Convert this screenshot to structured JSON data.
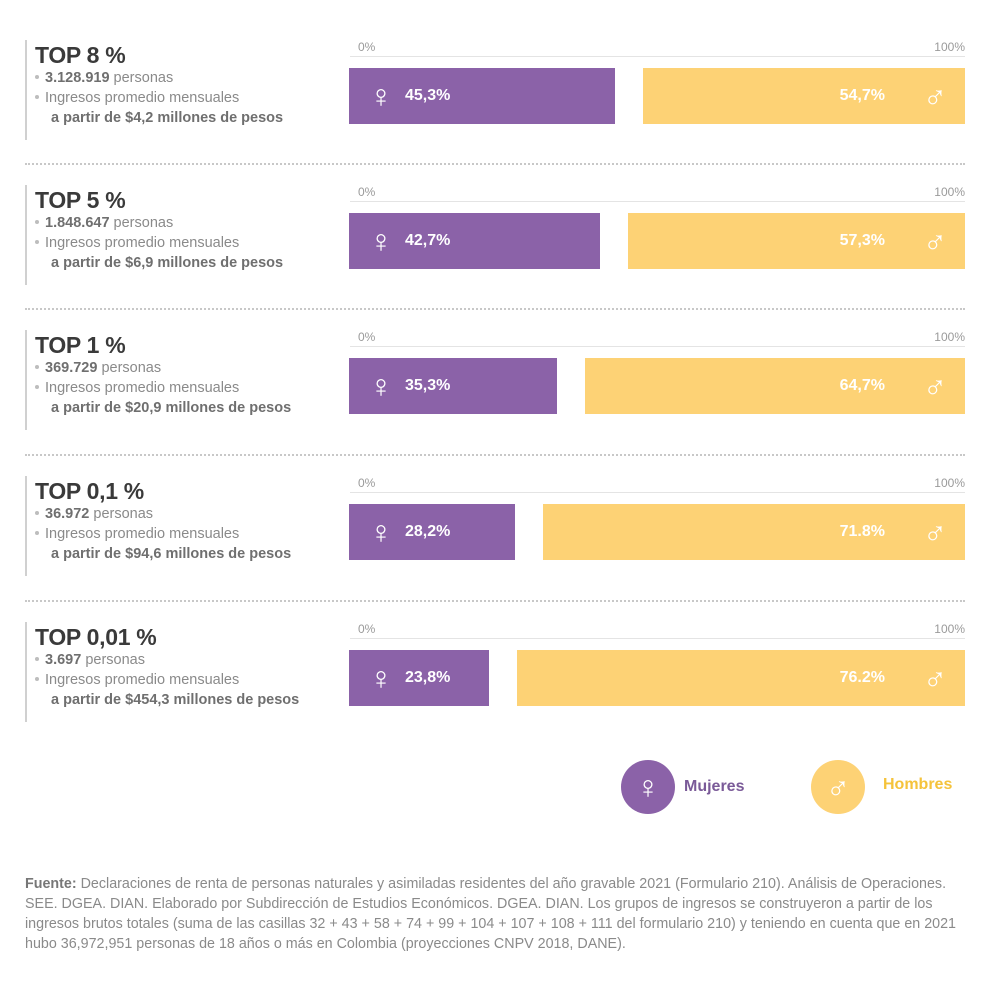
{
  "chart_data": {
    "type": "bar",
    "axis": {
      "min_label": "0%",
      "max_label": "100%",
      "ylim": [
        0,
        100
      ]
    },
    "series": [
      {
        "name": "Mujeres",
        "color": "#8b62a8",
        "icon": "female-symbol-icon"
      },
      {
        "name": "Hombres",
        "color": "#fdd275",
        "icon": "male-symbol-icon"
      }
    ],
    "groups": [
      {
        "title": "TOP 8 %",
        "count": "3.128.919",
        "count_suffix": " personas",
        "income_label": "Ingresos promedio mensuales",
        "income_threshold": "a partir de $4,2 millones de pesos",
        "female_value": 45.3,
        "female_label": "45,3%",
        "male_value": 54.7,
        "male_label": "54,7%"
      },
      {
        "title": "TOP 5 %",
        "count": "1.848.647",
        "count_suffix": " personas",
        "income_label": "Ingresos promedio mensuales",
        "income_threshold": "a partir de $6,9 millones de pesos",
        "female_value": 42.7,
        "female_label": "42,7%",
        "male_value": 57.3,
        "male_label": "57,3%"
      },
      {
        "title": "TOP 1 %",
        "count": "369.729",
        "count_suffix": " personas",
        "income_label": "Ingresos promedio mensuales",
        "income_threshold": "a partir de $20,9 millones de pesos",
        "female_value": 35.3,
        "female_label": "35,3%",
        "male_value": 64.7,
        "male_label": "64,7%"
      },
      {
        "title": "TOP 0,1 %",
        "count": "36.972",
        "count_suffix": " personas",
        "income_label": "Ingresos promedio mensuales",
        "income_threshold": "a partir de $94,6 millones de pesos",
        "female_value": 28.2,
        "female_label": "28,2%",
        "male_value": 71.8,
        "male_label": "71.8%"
      },
      {
        "title": "TOP 0,01 %",
        "count": "3.697",
        "count_suffix": " personas",
        "income_label": "Ingresos promedio mensuales",
        "income_threshold": "a partir de $454,3 millones de pesos",
        "female_value": 23.8,
        "female_label": "23,8%",
        "male_value": 76.2,
        "male_label": "76.2%"
      }
    ]
  },
  "legend": {
    "female_label": "Mujeres",
    "female_color": "#8b62a8",
    "female_text_color": "#7a5a98",
    "male_label": "Hombres",
    "male_color": "#fdd275",
    "male_text_color": "#f5c33b"
  },
  "footer": {
    "source_label": "Fuente:",
    "source_text": " Declaraciones de renta de personas naturales y asimiladas residentes del año gravable 2021 (Formulario 210). Análisis de Operaciones. SEE. DGEA. DIAN. Elaborado por Subdirección de Estudios Económicos. DGEA. DIAN. Los grupos de ingresos se construyeron a partir de los ingresos brutos totales (suma de las casillas 32 + 43 + 58 + 74 + 99 + 104 + 107 + 108 + 111 del formulario 210) y teniendo en cuenta que en 2021 hubo 36,972,951 personas de 18 años o más en Colombia (proyecciones CNPV 2018, DANE)."
  }
}
